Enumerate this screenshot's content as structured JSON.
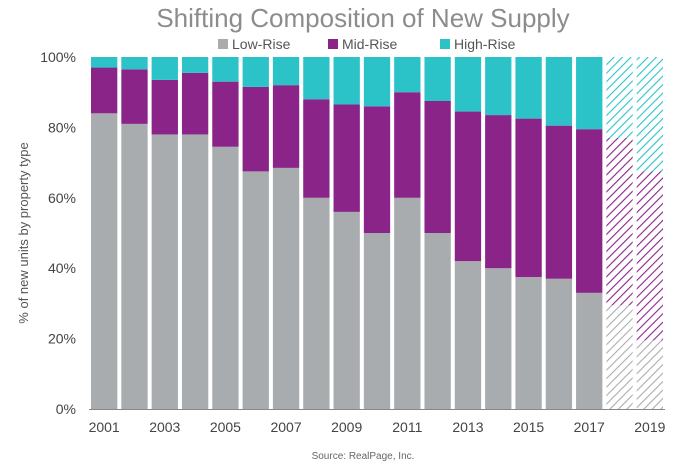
{
  "chart_data": {
    "type": "bar",
    "stacked": true,
    "title": "Shifting Composition of New Supply",
    "ylabel": "% of new units by property type",
    "xlabel": "",
    "source": "Source: RealPage, Inc.",
    "ylim": [
      0,
      100
    ],
    "y_ticks": [
      "0%",
      "20%",
      "40%",
      "60%",
      "80%",
      "100%"
    ],
    "y_tick_values": [
      0,
      20,
      40,
      60,
      80,
      100
    ],
    "categories": [
      "2001",
      "2002",
      "2003",
      "2004",
      "2005",
      "2006",
      "2007",
      "2008",
      "2009",
      "2010",
      "2011",
      "2012",
      "2013",
      "2014",
      "2015",
      "2016",
      "2017",
      "2018",
      "2019"
    ],
    "x_tick_labels": [
      "2001",
      "",
      "2003",
      "",
      "2005",
      "",
      "2007",
      "",
      "2009",
      "",
      "2011",
      "",
      "2013",
      "",
      "2015",
      "",
      "2017",
      "",
      "2019"
    ],
    "projected_categories": [
      "2018",
      "2019"
    ],
    "legend_position": "top",
    "series": [
      {
        "name": "Low-Rise",
        "color": "#a9acaf",
        "values": [
          84,
          81,
          78,
          78,
          74.5,
          67.5,
          68.5,
          60,
          56,
          50,
          60,
          50,
          42,
          40,
          37.5,
          37,
          33,
          29.5,
          19.5
        ]
      },
      {
        "name": "Mid-Rise",
        "color": "#8b2489",
        "values": [
          13,
          15.5,
          15.5,
          17.5,
          18.5,
          24,
          23.5,
          28,
          30.5,
          36,
          30,
          37.5,
          42.5,
          43.5,
          45,
          43.5,
          46.5,
          47.5,
          48
        ]
      },
      {
        "name": "High-Rise",
        "color": "#2bc3c8",
        "values": [
          3,
          3.5,
          6.5,
          4.5,
          7,
          8.5,
          8,
          12,
          13.5,
          14,
          10,
          12.5,
          15.5,
          16.5,
          17.5,
          19.5,
          20.5,
          23,
          32.5
        ]
      }
    ]
  }
}
